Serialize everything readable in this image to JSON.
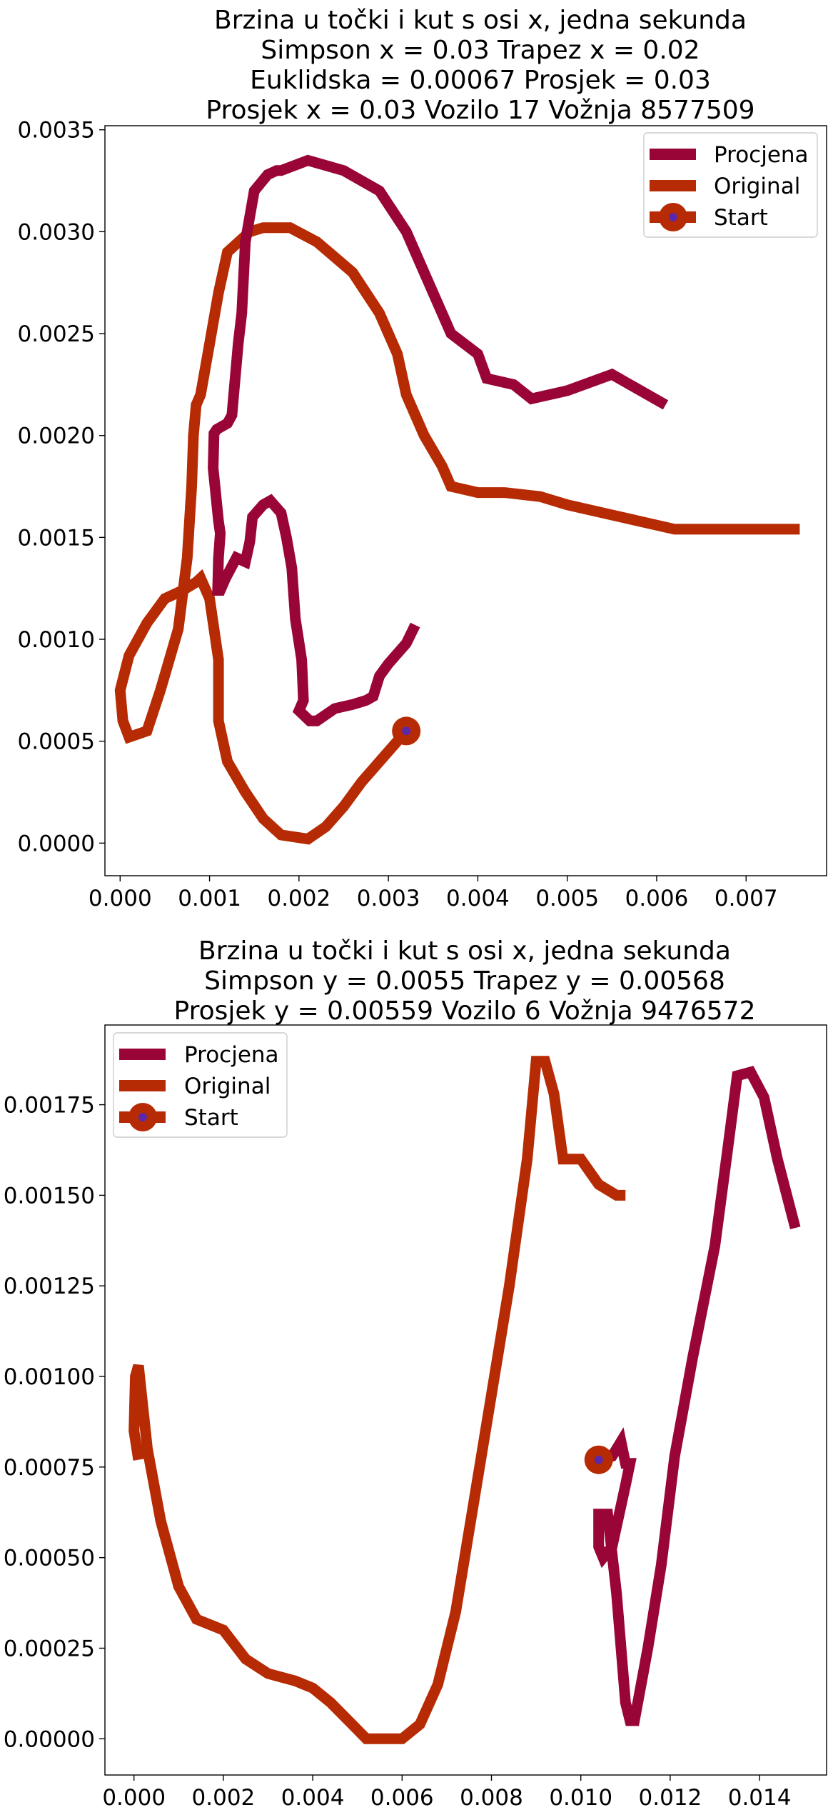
{
  "chart_data": [
    {
      "type": "line",
      "title_lines": [
        "Brzina u točki i kut s osi x, jedna sekunda",
        "Simpson x = 0.03 Trapez x = 0.02",
        "Euklidska = 0.00067 Prosjek = 0.03",
        "Prosjek x = 0.03 Vozilo 17 Vožnja 8577509"
      ],
      "xlabel": "",
      "ylabel": "",
      "xlim": [
        -0.00017,
        0.0079
      ],
      "ylim": [
        -0.00016,
        0.00352
      ],
      "xticks": [
        "0.000",
        "0.001",
        "0.002",
        "0.003",
        "0.004",
        "0.005",
        "0.006",
        "0.007"
      ],
      "yticks": [
        "0.0000",
        "0.0005",
        "0.0010",
        "0.0015",
        "0.0020",
        "0.0025",
        "0.0030",
        "0.0035"
      ],
      "legend_position": "top-right",
      "legend": [
        "Procjena",
        "Original",
        "Start"
      ],
      "grid": false,
      "colors": {
        "procjena": "#9a0538",
        "original": "#b72b04",
        "start_fill": "#b72b04",
        "start_center": "#5a28a8"
      },
      "series": [
        {
          "name": "Procjena",
          "x": [
            0.0033,
            0.0032,
            0.003,
            0.0029,
            0.00283,
            0.00275,
            0.0026,
            0.0024,
            0.0022,
            0.00212,
            0.002,
            0.00205,
            0.00204,
            0.00203,
            0.00196,
            0.00192,
            0.00186,
            0.0018,
            0.00168,
            0.0016,
            0.00148,
            0.00145,
            0.0014,
            0.0013,
            0.00118,
            0.00112,
            0.00109,
            0.0011,
            0.00112,
            0.0011,
            0.00104,
            0.00105,
            0.00108,
            0.0012,
            0.00125,
            0.00127,
            0.0013,
            0.00132,
            0.00136,
            0.0014,
            0.0015,
            0.00165,
            0.00175,
            0.0018,
            0.0021,
            0.0025,
            0.0029,
            0.0032,
            0.0034,
            0.0037,
            0.004,
            0.0041,
            0.0044,
            0.0046,
            0.005,
            0.0055,
            0.0061
          ],
          "y": [
            0.00107,
            0.00098,
            0.00088,
            0.00082,
            0.00072,
            0.0007,
            0.00068,
            0.00066,
            0.0006,
            0.0006,
            0.00065,
            0.0007,
            0.0008,
            0.0009,
            0.0011,
            0.00135,
            0.0015,
            0.00162,
            0.00168,
            0.00166,
            0.0016,
            0.00148,
            0.00138,
            0.0014,
            0.0013,
            0.00124,
            0.00124,
            0.0014,
            0.00152,
            0.00158,
            0.00184,
            0.00201,
            0.00203,
            0.00206,
            0.0021,
            0.0022,
            0.00235,
            0.00245,
            0.0026,
            0.00295,
            0.0032,
            0.00328,
            0.0033,
            0.0033,
            0.00335,
            0.0033,
            0.0032,
            0.003,
            0.0028,
            0.0025,
            0.0024,
            0.00228,
            0.00225,
            0.00218,
            0.00222,
            0.0023,
            0.00215
          ],
          "note_path": "crimson track"
        },
        {
          "name": "Original",
          "x": [
            0.0032,
            0.003,
            0.0027,
            0.0025,
            0.0023,
            0.0021,
            0.0018,
            0.0016,
            0.0014,
            0.0012,
            0.0011,
            0.0011,
            0.001,
            0.0009,
            0.00085,
            0.0007,
            0.0005,
            0.0003,
            0.0001,
            0.0,
            3e-05,
            0.0001,
            0.0003,
            0.00045,
            0.00065,
            0.00075,
            0.0008,
            0.00082,
            0.00085,
            0.0009,
            0.001,
            0.0011,
            0.0012,
            0.00145,
            0.0016,
            0.0019,
            0.0022,
            0.0026,
            0.0029,
            0.0031,
            0.0032,
            0.0034,
            0.0036,
            0.0037,
            0.004,
            0.0043,
            0.0047,
            0.005,
            0.0056,
            0.0062,
            0.0069,
            0.0076
          ],
          "y": [
            0.00055,
            0.00045,
            0.0003,
            0.00018,
            8e-05,
            2e-05,
            4e-05,
            0.00012,
            0.00025,
            0.0004,
            0.0006,
            0.0009,
            0.0012,
            0.0013,
            0.00128,
            0.00124,
            0.0012,
            0.00108,
            0.00092,
            0.00075,
            0.0006,
            0.00052,
            0.00055,
            0.00075,
            0.00105,
            0.0014,
            0.00175,
            0.002,
            0.00215,
            0.0022,
            0.00245,
            0.0027,
            0.0029,
            0.003,
            0.00302,
            0.00302,
            0.00295,
            0.0028,
            0.0026,
            0.0024,
            0.0022,
            0.002,
            0.00185,
            0.00175,
            0.00172,
            0.00172,
            0.0017,
            0.00166,
            0.0016,
            0.00154,
            0.00154,
            0.00154
          ],
          "note_path": "orange track"
        }
      ],
      "start": {
        "x": 0.0032,
        "y": 0.00055
      }
    },
    {
      "type": "line",
      "title_lines": [
        "Brzina u točki i kut s osi x, jedna sekunda",
        "Simpson y = 0.0055 Trapez y = 0.00568",
        "Prosjek y = 0.00559 Vozilo 6 Vožnja 9476572"
      ],
      "xlabel": "",
      "ylabel": "",
      "xlim": [
        -0.00065,
        0.0155
      ],
      "ylim": [
        -0.0001,
        0.00197
      ],
      "xticks": [
        "0.000",
        "0.002",
        "0.004",
        "0.006",
        "0.008",
        "0.010",
        "0.012",
        "0.014"
      ],
      "yticks": [
        "0.00000",
        "0.00025",
        "0.00050",
        "0.00075",
        "0.00100",
        "0.00125",
        "0.00150",
        "0.00175"
      ],
      "legend_position": "top-left",
      "legend": [
        "Procjena",
        "Original",
        "Start"
      ],
      "grid": false,
      "colors": {
        "procjena": "#9a0538",
        "original": "#b72b04",
        "start_fill": "#b72b04",
        "start_center": "#5a28a8"
      },
      "series": [
        {
          "name": "Procjena",
          "x": [
            0.0104,
            0.0107,
            0.0108,
            0.0109,
            0.011,
            0.0111,
            0.011,
            0.0107,
            0.0105,
            0.0104,
            0.0104,
            0.0106,
            0.0108,
            0.011,
            0.0111,
            0.0112,
            0.0115,
            0.0118,
            0.0121,
            0.0125,
            0.013,
            0.0133,
            0.0135,
            0.0138,
            0.0141,
            0.0144,
            0.0148
          ],
          "y": [
            0.00077,
            0.00078,
            0.0008,
            0.00082,
            0.00076,
            0.00076,
            0.0007,
            0.00053,
            0.0005,
            0.00053,
            0.00062,
            0.00062,
            0.0004,
            0.0001,
            5e-05,
            5e-05,
            0.00025,
            0.00048,
            0.00078,
            0.00105,
            0.00136,
            0.00164,
            0.00183,
            0.00184,
            0.00177,
            0.0016,
            0.00141
          ],
          "note_path": "crimson track — rendered via polyline below"
        },
        {
          "name": "Original",
          "x": [
            0.0001,
            0.0,
            3e-05,
            0.0001,
            0.0003,
            0.0006,
            0.001,
            0.0014,
            0.002,
            0.0025,
            0.003,
            0.0036,
            0.004,
            0.0044,
            0.0048,
            0.0052,
            0.0056,
            0.006,
            0.0064,
            0.0068,
            0.0072,
            0.0076,
            0.008,
            0.0084,
            0.0088,
            0.009,
            0.0092,
            0.0094,
            0.0096,
            0.01,
            0.0104,
            0.0108,
            0.011
          ],
          "y": [
            0.00077,
            0.00085,
            0.001,
            0.00103,
            0.0008,
            0.0006,
            0.00042,
            0.00033,
            0.0003,
            0.00022,
            0.00018,
            0.00016,
            0.00014,
            0.0001,
            5e-05,
            0.0,
            0.0,
            0.0,
            4e-05,
            0.00015,
            0.00035,
            0.00065,
            0.00095,
            0.00125,
            0.0016,
            0.00187,
            0.00187,
            0.00178,
            0.0016,
            0.0016,
            0.00153,
            0.0015,
            0.0015
          ],
          "note_path": "orange track"
        }
      ],
      "start": {
        "x": 0.0104,
        "y": 0.00077
      }
    }
  ]
}
